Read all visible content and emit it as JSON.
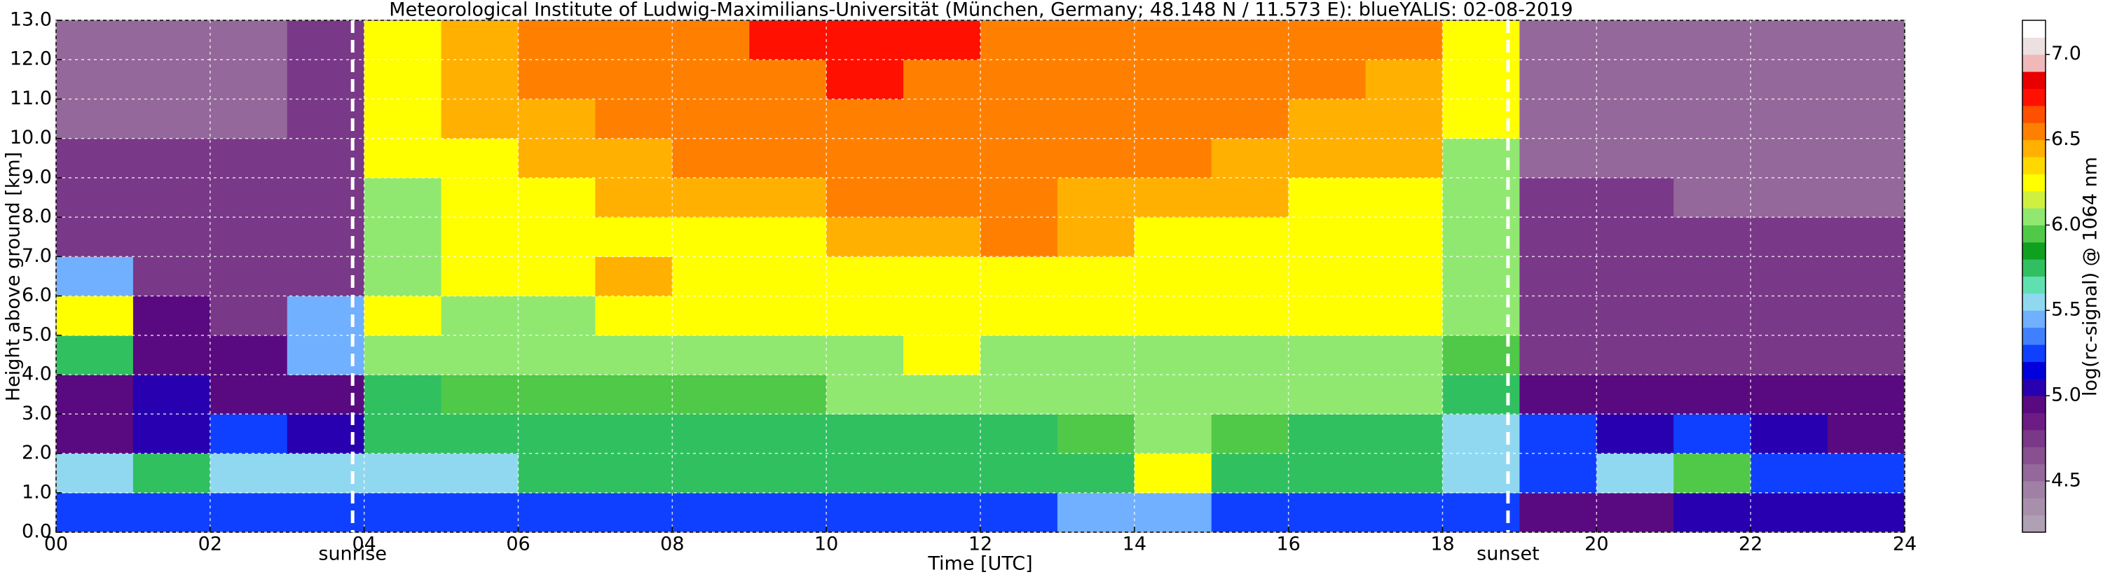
{
  "chart_data": {
    "type": "heatmap",
    "title": "Meteorological Institute of Ludwig-Maximilians-Universität (München, Germany; 48.148 N / 11.573 E):    blueYALIS: 02-08-2019",
    "x_label": "Time [UTC]",
    "y_label": "Height above ground [km]",
    "colorbar_label": "log(rc-signal) @ 1064 nm",
    "x": [
      0.5,
      1.5,
      2.5,
      3.5,
      4.5,
      5.5,
      6.5,
      7.5,
      8.5,
      9.5,
      10.5,
      11.5,
      12.5,
      13.5,
      14.5,
      15.5,
      16.5,
      17.5,
      18.5,
      19.5,
      20.5,
      21.5,
      22.5,
      23.5
    ],
    "y": [
      0.5,
      1.5,
      2.5,
      3.5,
      4.5,
      5.5,
      6.5,
      7.5,
      8.5,
      9.5,
      10.5,
      11.5,
      12.5
    ],
    "z": [
      [
        5.2,
        5.2,
        5.2,
        5.2,
        5.2,
        5.2,
        5.3,
        5.3,
        5.3,
        5.3,
        5.3,
        5.3,
        5.3,
        5.4,
        5.5,
        5.3,
        5.3,
        5.3,
        5.3,
        5.0,
        5.0,
        5.1,
        5.1,
        5.1
      ],
      [
        5.6,
        5.7,
        5.6,
        5.6,
        5.6,
        5.6,
        5.7,
        5.7,
        5.8,
        5.7,
        5.7,
        5.7,
        5.7,
        5.8,
        6.2,
        5.7,
        5.7,
        5.7,
        5.6,
        5.3,
        5.6,
        5.9,
        5.3,
        5.3
      ],
      [
        4.9,
        5.1,
        5.2,
        5.1,
        5.7,
        5.7,
        5.8,
        5.8,
        5.8,
        5.8,
        5.8,
        5.8,
        5.8,
        5.9,
        6.0,
        5.9,
        5.8,
        5.8,
        5.6,
        5.2,
        5.1,
        5.2,
        5.1,
        5.0
      ],
      [
        5.0,
        5.1,
        5.0,
        4.9,
        5.8,
        5.9,
        5.9,
        5.9,
        5.9,
        5.9,
        6.0,
        6.0,
        6.0,
        6.0,
        6.0,
        6.0,
        6.0,
        6.0,
        5.8,
        4.9,
        4.9,
        4.9,
        5.0,
        5.0
      ],
      [
        5.8,
        5.0,
        4.9,
        5.5,
        6.0,
        6.0,
        6.0,
        6.1,
        6.1,
        6.1,
        6.1,
        6.2,
        6.1,
        6.1,
        6.1,
        6.1,
        6.1,
        6.1,
        5.9,
        4.8,
        4.8,
        4.8,
        4.8,
        4.8
      ],
      [
        6.2,
        5.0,
        4.8,
        5.5,
        6.3,
        6.1,
        6.1,
        6.2,
        6.2,
        6.2,
        6.2,
        6.2,
        6.2,
        6.2,
        6.2,
        6.2,
        6.2,
        6.2,
        6.0,
        4.8,
        4.8,
        4.7,
        4.7,
        4.8
      ],
      [
        5.4,
        4.8,
        4.8,
        4.8,
        6.1,
        6.2,
        6.2,
        6.4,
        6.3,
        6.3,
        6.3,
        6.3,
        6.3,
        6.3,
        6.3,
        6.3,
        6.3,
        6.3,
        6.0,
        4.7,
        4.7,
        4.7,
        4.7,
        4.7
      ],
      [
        4.8,
        4.8,
        4.7,
        4.8,
        6.1,
        6.2,
        6.3,
        6.3,
        6.3,
        6.3,
        6.4,
        6.4,
        6.6,
        6.4,
        6.3,
        6.3,
        6.3,
        6.3,
        6.0,
        4.7,
        4.7,
        4.7,
        4.7,
        4.7
      ],
      [
        4.7,
        4.7,
        4.7,
        4.7,
        6.1,
        6.3,
        6.3,
        6.4,
        6.4,
        6.4,
        6.5,
        6.5,
        6.6,
        6.4,
        6.4,
        6.4,
        6.3,
        6.3,
        6.0,
        4.7,
        4.7,
        4.6,
        4.6,
        4.6
      ],
      [
        4.7,
        4.7,
        4.7,
        4.7,
        6.2,
        6.3,
        6.4,
        6.4,
        6.5,
        6.5,
        6.5,
        6.5,
        6.5,
        6.5,
        6.5,
        6.4,
        6.4,
        6.4,
        6.1,
        4.6,
        4.6,
        4.6,
        4.6,
        4.6
      ],
      [
        4.6,
        4.6,
        4.6,
        4.7,
        6.2,
        6.4,
        6.4,
        6.5,
        6.5,
        6.6,
        6.6,
        6.6,
        6.5,
        6.5,
        6.5,
        6.5,
        6.4,
        6.4,
        6.2,
        4.6,
        4.6,
        4.6,
        4.6,
        4.6
      ],
      [
        4.6,
        4.6,
        4.6,
        4.7,
        6.2,
        6.4,
        6.5,
        6.5,
        6.6,
        6.6,
        6.7,
        6.6,
        6.6,
        6.6,
        6.6,
        6.5,
        6.5,
        6.4,
        6.2,
        4.6,
        4.6,
        4.6,
        4.6,
        4.6
      ],
      [
        4.6,
        4.6,
        4.6,
        4.7,
        6.3,
        6.4,
        6.5,
        6.6,
        6.6,
        6.7,
        6.7,
        6.7,
        6.6,
        6.6,
        6.6,
        6.6,
        6.5,
        6.5,
        6.3,
        4.6,
        4.6,
        4.6,
        4.6,
        4.6
      ]
    ],
    "xlim": [
      0,
      24
    ],
    "xticks": [
      {
        "value": 0,
        "label": "00"
      },
      {
        "value": 2,
        "label": "02"
      },
      {
        "value": 4,
        "label": "04"
      },
      {
        "value": 6,
        "label": "06"
      },
      {
        "value": 8,
        "label": "08"
      },
      {
        "value": 10,
        "label": "10"
      },
      {
        "value": 12,
        "label": "12"
      },
      {
        "value": 14,
        "label": "14"
      },
      {
        "value": 16,
        "label": "16"
      },
      {
        "value": 18,
        "label": "18"
      },
      {
        "value": 20,
        "label": "20"
      },
      {
        "value": 22,
        "label": "22"
      },
      {
        "value": 24,
        "label": "24"
      }
    ],
    "ylim": [
      0,
      13
    ],
    "yticks": [
      {
        "value": 0,
        "label": "0.0"
      },
      {
        "value": 1,
        "label": "1.0"
      },
      {
        "value": 2,
        "label": "2.0"
      },
      {
        "value": 3,
        "label": "3.0"
      },
      {
        "value": 4,
        "label": "4.0"
      },
      {
        "value": 5,
        "label": "5.0"
      },
      {
        "value": 6,
        "label": "6.0"
      },
      {
        "value": 7,
        "label": "7.0"
      },
      {
        "value": 8,
        "label": "8.0"
      },
      {
        "value": 9,
        "label": "9.0"
      },
      {
        "value": 10,
        "label": "10.0"
      },
      {
        "value": 11,
        "label": "11.0"
      },
      {
        "value": 12,
        "label": "12.0"
      },
      {
        "value": 13,
        "label": "13.0"
      }
    ],
    "clim": [
      4.2,
      7.2
    ],
    "cticks": [
      4.5,
      {
        "value": 5,
        "label": "5.0"
      },
      5.5,
      {
        "value": 6,
        "label": "6.0"
      },
      6.5,
      {
        "value": 7,
        "label": "7.0"
      }
    ],
    "colormap": [
      "#b0a0b4",
      "#a890ac",
      "#a080a4",
      "#94689a",
      "#885090",
      "#7a3888",
      "#6c1c84",
      "#5a0a80",
      "#2800b0",
      "#0000dc",
      "#1040ff",
      "#4080ff",
      "#70b0ff",
      "#90d8f0",
      "#60e0b0",
      "#30c060",
      "#10a020",
      "#50c848",
      "#90e870",
      "#d0f040",
      "#ffff00",
      "#ffd800",
      "#ffb000",
      "#ff8000",
      "#ff5000",
      "#ff1000",
      "#e80000",
      "#f0b8b8",
      "#ece0e0",
      "#ffffff"
    ],
    "grid": true,
    "annotations": [
      {
        "text": "sunrise",
        "x": 3.85
      },
      {
        "text": "sunset",
        "x": 18.85
      }
    ]
  }
}
